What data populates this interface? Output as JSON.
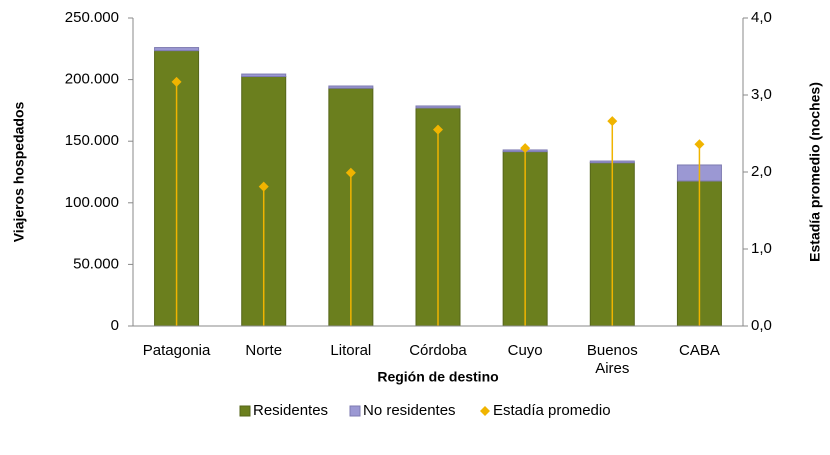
{
  "chart_data": {
    "type": "bar",
    "stacked": true,
    "x_label": "Región de destino",
    "y_label": "Viajeros hospedados",
    "y2_label": "Estadía promedio (noches)",
    "categories": [
      "Patagonia",
      "Norte",
      "Litoral",
      "Córdoba",
      "Cuyo",
      "Buenos Aires",
      "CABA"
    ],
    "series": [
      {
        "name": "Residentes",
        "color": "#6b7f1e",
        "values": [
          223500,
          202500,
          193000,
          177000,
          141500,
          132500,
          117700
        ]
      },
      {
        "name": "No residentes",
        "color": "#9b98d3",
        "values": [
          2500,
          2000,
          1800,
          1600,
          1400,
          1400,
          13000
        ]
      },
      {
        "name": "Estadía promedio",
        "color": "#f0b400",
        "axis": "y2",
        "marker": "diamond",
        "values": [
          3.17,
          1.81,
          1.99,
          2.55,
          2.31,
          2.66,
          2.36
        ]
      }
    ],
    "ylim": [
      0,
      250000
    ],
    "yticks": [
      0,
      {
        "value": 50000,
        "label": "50.000"
      },
      {
        "value": 100000,
        "label": "100.000"
      },
      {
        "value": 150000,
        "label": "150.000"
      },
      {
        "value": 200000,
        "label": "200.000"
      },
      {
        "value": 250000,
        "label": "250.000"
      }
    ],
    "y2lim": [
      0,
      4
    ],
    "y2ticks": [
      {
        "value": 0,
        "label": "0,0"
      },
      {
        "value": 1,
        "label": "1,0"
      },
      {
        "value": 2,
        "label": "2,0"
      },
      {
        "value": 3,
        "label": "3,0"
      },
      {
        "value": 4,
        "label": "4,0"
      }
    ],
    "legend": "bottom"
  }
}
